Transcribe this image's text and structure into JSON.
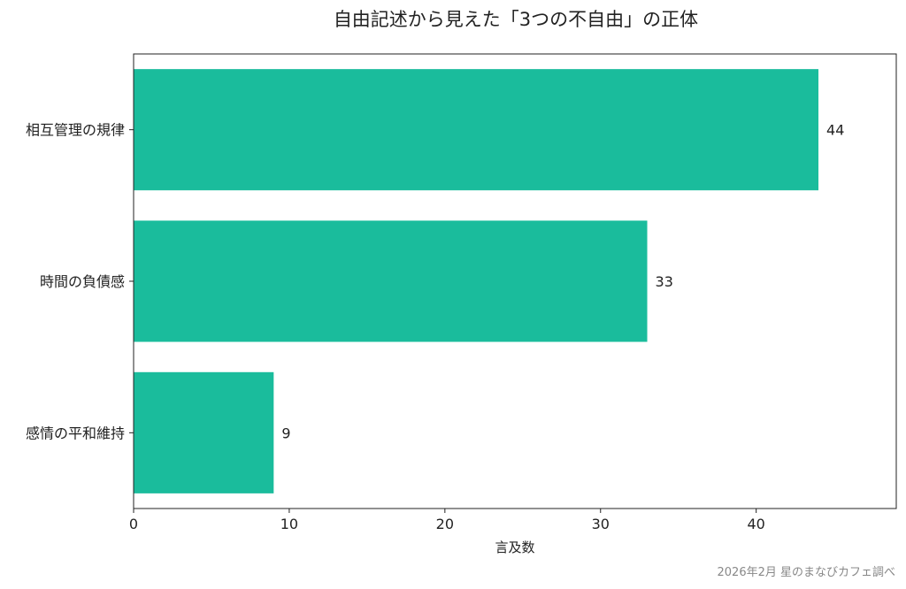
{
  "chart_data": {
    "type": "bar",
    "orientation": "horizontal",
    "title": "自由記述から見えた「3つの不自由」の正体",
    "categories": [
      "相互管理の規律",
      "時間の負債感",
      "感情の平和維持"
    ],
    "values": [
      44,
      33,
      9
    ],
    "data_labels": [
      "44",
      "33",
      "9"
    ],
    "xlabel": "言及数",
    "ylabel": "",
    "xlim": [
      0,
      49
    ],
    "xticks": [
      0,
      10,
      20,
      30,
      40
    ],
    "xtick_labels": [
      "0",
      "10",
      "20",
      "30",
      "40"
    ],
    "grid": false,
    "bar_color": "#1ABC9C",
    "source_note": "2026年2月 星のまなびカフェ調べ"
  }
}
